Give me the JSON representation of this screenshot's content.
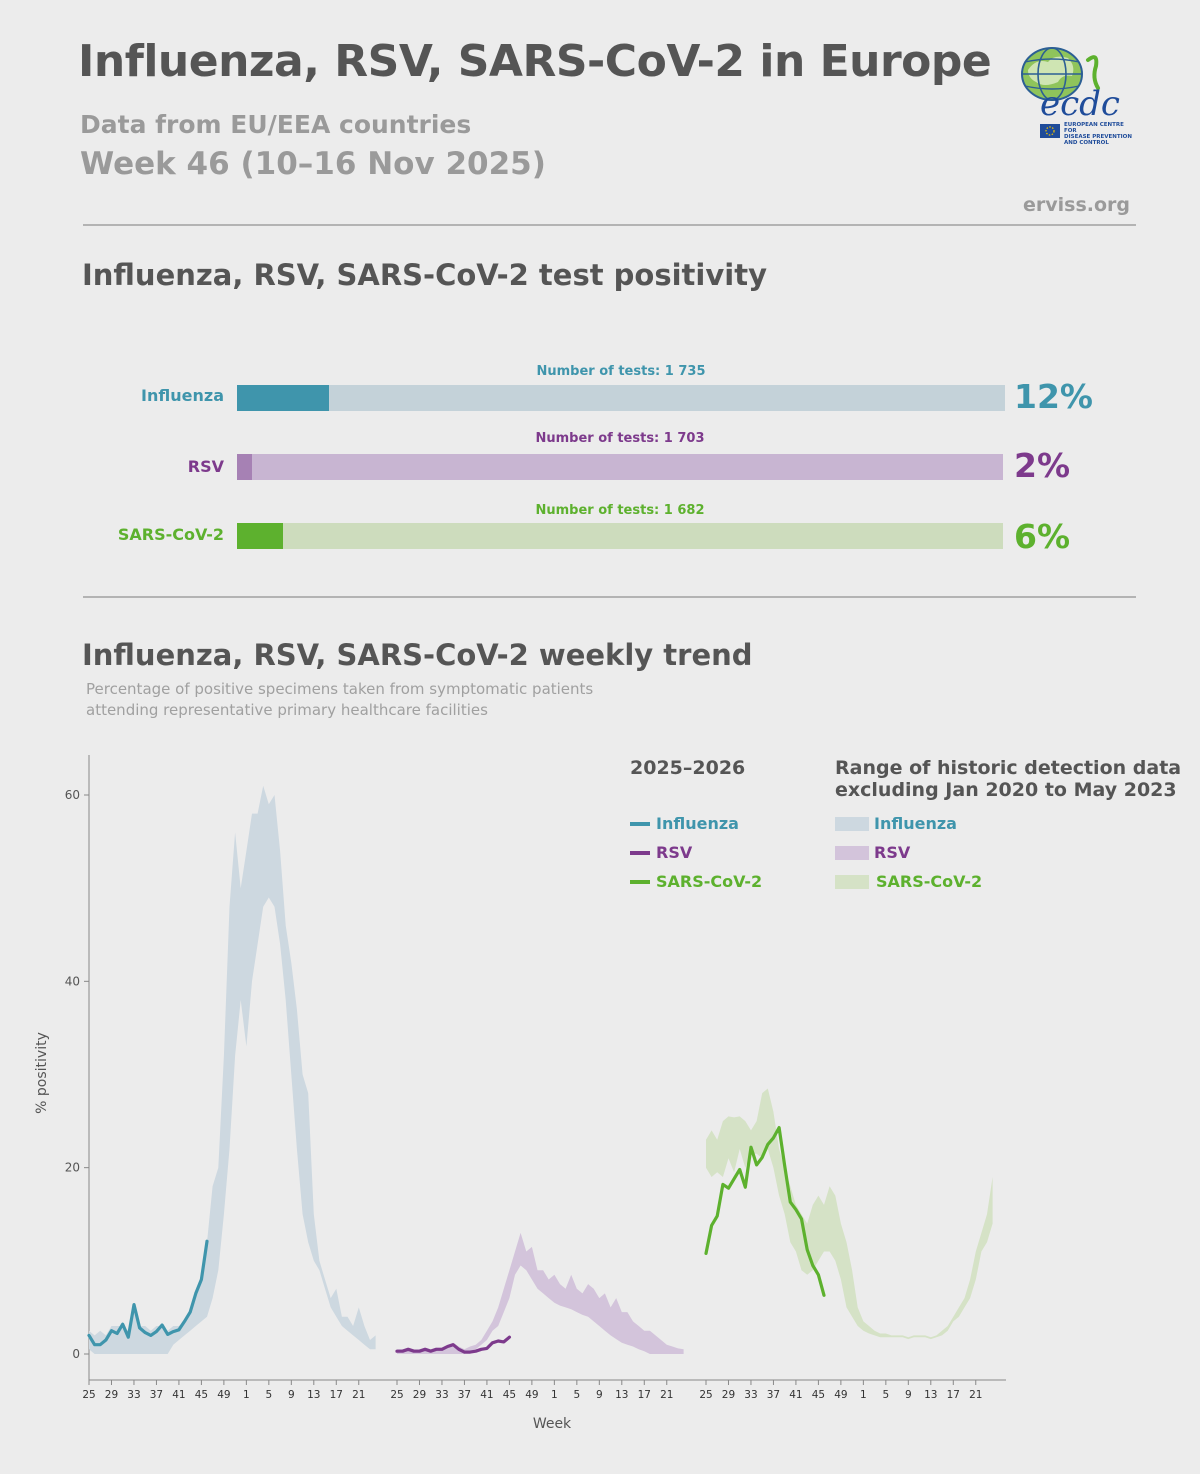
{
  "header": {
    "title": "Influenza, RSV, SARS-CoV-2 in Europe",
    "subtitle": "Data from EU/EEA countries",
    "week": "Week 46 (10–16 Nov 2025)",
    "site": "erviss.org",
    "logo_text": "ecdc",
    "logo_caption": [
      "EUROPEAN CENTRE FOR",
      "DISEASE PREVENTION",
      "AND CONTROL"
    ]
  },
  "positivity": {
    "title": "Influenza, RSV, SARS-CoV-2 test positivity",
    "items": [
      {
        "label": "Influenza",
        "tests": "Number of tests: 1 735",
        "value": 12,
        "pct_text": "12%",
        "color": "#3f95ac",
        "track": "#c4d2d9"
      },
      {
        "label": "RSV",
        "tests": "Number of tests: 1 703",
        "value": 2,
        "pct_text": "2%",
        "color": "#7d3a8c",
        "fill": "#a681b4",
        "track": "#c8b5d2"
      },
      {
        "label": "SARS-CoV-2",
        "tests": "Number of tests: 1 682",
        "value": 6,
        "pct_text": "6%",
        "color": "#5db12e",
        "track": "#cddcbd"
      }
    ]
  },
  "trend": {
    "title": "Influenza, RSV, SARS-CoV-2 weekly trend",
    "note_line1": "Percentage of positive specimens taken from symptomatic patients",
    "note_line2": "attending representative primary healthcare facilities",
    "legend": {
      "season_title": "2025–2026",
      "range_title_line1": "Range of historic detection data",
      "range_title_line2": "excluding Jan 2020 to May 2023",
      "items": [
        "Influenza",
        "RSV",
        "SARS-CoV-2"
      ]
    }
  },
  "chart_data": {
    "type": "line",
    "ylabel": "% positivity",
    "xlabel": "Week",
    "ylim": [
      -2,
      65
    ],
    "yticks": [
      0,
      20,
      40,
      60
    ],
    "xticks": [
      "25",
      "29",
      "33",
      "37",
      "41",
      "45",
      "49",
      "1",
      "5",
      "9",
      "13",
      "17",
      "21"
    ],
    "season_weeks": [
      "25",
      "26",
      "27",
      "28",
      "29",
      "30",
      "31",
      "32",
      "33",
      "34",
      "35",
      "36",
      "37",
      "38",
      "39",
      "40",
      "41",
      "42",
      "43",
      "44",
      "45",
      "46",
      "47",
      "48",
      "49",
      "50",
      "51",
      "52",
      "1",
      "2",
      "3",
      "4",
      "5",
      "6",
      "7",
      "8",
      "9",
      "10",
      "11",
      "12",
      "13",
      "14",
      "15",
      "16",
      "17",
      "18",
      "19",
      "20",
      "21",
      "22",
      "23",
      "24"
    ],
    "panels": [
      {
        "name": "Influenza",
        "line_color": "#3f95ac",
        "band_color": "#cdd8e0",
        "series": {
          "name": "Influenza",
          "values": [
            2,
            1,
            1,
            1.5,
            2.5,
            2.2,
            3.2,
            1.8,
            5.3,
            2.8,
            2.3,
            2,
            2.4,
            3.1,
            2.1,
            2.4,
            2.6,
            3.5,
            4.5,
            6.5,
            8,
            12.1
          ]
        },
        "range_low": [
          0.5,
          0,
          0,
          0,
          0,
          0,
          0,
          0,
          0,
          0,
          0,
          0,
          0,
          0,
          0,
          1,
          1.5,
          2,
          2.5,
          3,
          3.5,
          4,
          6,
          9,
          15,
          22,
          32,
          38,
          33,
          40,
          44,
          48,
          49,
          48,
          44,
          38,
          30,
          22,
          15,
          12,
          10,
          9,
          7,
          5,
          4,
          3,
          2.5,
          2,
          1.5,
          1,
          0.5,
          0.5
        ],
        "range_high": [
          2.5,
          2,
          2.5,
          2,
          3,
          3,
          3,
          2.5,
          5,
          3,
          3,
          2.5,
          3,
          3,
          2.5,
          3,
          3,
          3.5,
          4.5,
          6,
          8,
          12,
          18,
          20,
          32,
          48,
          56,
          50,
          54,
          58,
          58,
          61,
          59,
          60,
          54,
          46,
          42,
          37,
          30,
          28,
          15,
          10,
          8,
          6,
          7,
          4,
          4,
          3,
          5,
          3,
          1.5,
          2
        ]
      },
      {
        "name": "RSV",
        "line_color": "#7d3a8c",
        "band_color": "#d3c4db",
        "series": {
          "name": "RSV",
          "values": [
            0.3,
            0.3,
            0.5,
            0.3,
            0.3,
            0.5,
            0.3,
            0.5,
            0.5,
            0.8,
            1,
            0.5,
            0.2,
            0.2,
            0.3,
            0.5,
            0.6,
            1.2,
            1.4,
            1.3,
            1.8
          ]
        },
        "range_low": [
          0,
          0,
          0,
          0,
          0,
          0,
          0,
          0,
          0,
          0,
          0,
          0,
          0,
          0.3,
          0.5,
          1,
          1.5,
          2.5,
          3,
          4.5,
          6,
          8.5,
          9.5,
          9,
          8,
          7,
          6.5,
          6,
          5.5,
          5.2,
          5,
          4.8,
          4.5,
          4.2,
          4,
          3.5,
          3,
          2.5,
          2,
          1.6,
          1.2,
          1,
          0.8,
          0.5,
          0.3,
          0,
          0,
          0,
          0,
          0,
          0,
          0
        ],
        "range_high": [
          0.5,
          0.5,
          0.7,
          0.5,
          0.5,
          0.7,
          0.5,
          0.7,
          0.7,
          1,
          1.2,
          0.8,
          0.5,
          0.8,
          1,
          1.5,
          2.5,
          3.5,
          5,
          7,
          9,
          11,
          13,
          11,
          11.5,
          9,
          9,
          8,
          8.5,
          7.5,
          7,
          8.5,
          7,
          6.5,
          7.5,
          7,
          6,
          6.5,
          5,
          6,
          4.5,
          4.5,
          3.5,
          3,
          2.5,
          2.5,
          2,
          1.5,
          1,
          0.8,
          0.6,
          0.5
        ]
      },
      {
        "name": "SARS-CoV-2",
        "line_color": "#5db12e",
        "band_color": "#d5e2c6",
        "series": {
          "name": "SARS-CoV-2",
          "values": [
            10.8,
            13.8,
            14.8,
            18.2,
            17.8,
            18.8,
            19.8,
            17.9,
            22.2,
            20.3,
            21.1,
            22.5,
            23.2,
            24.3,
            20.2,
            16.3,
            15.5,
            14.5,
            11.2,
            9.5,
            8.5,
            6.3
          ]
        },
        "range_low": [
          20,
          19,
          19.5,
          19,
          21,
          19.5,
          22,
          20,
          21.5,
          21.5,
          21,
          22,
          20,
          17,
          15,
          12,
          11,
          9,
          8.5,
          9,
          10,
          11,
          11,
          10,
          8,
          5,
          4,
          3,
          2.5,
          2.2,
          2,
          1.8,
          1.8,
          1.8,
          1.8,
          1.8,
          1.6,
          1.8,
          1.8,
          1.8,
          1.6,
          1.8,
          2,
          2.5,
          3.5,
          4,
          5,
          6,
          8,
          11,
          12,
          14
        ],
        "range_high": [
          23,
          24,
          23,
          25,
          25.5,
          25.4,
          25.5,
          25,
          24,
          25,
          28,
          28.5,
          26,
          22,
          20,
          18,
          16,
          15,
          14,
          16,
          17,
          16,
          18,
          17,
          14,
          12,
          9,
          5,
          3.5,
          3,
          2.5,
          2.2,
          2.2,
          2,
          2,
          2,
          1.8,
          2,
          2,
          2,
          1.8,
          2,
          2.5,
          3,
          4,
          5,
          6,
          8,
          11,
          13,
          15,
          19
        ]
      }
    ]
  }
}
